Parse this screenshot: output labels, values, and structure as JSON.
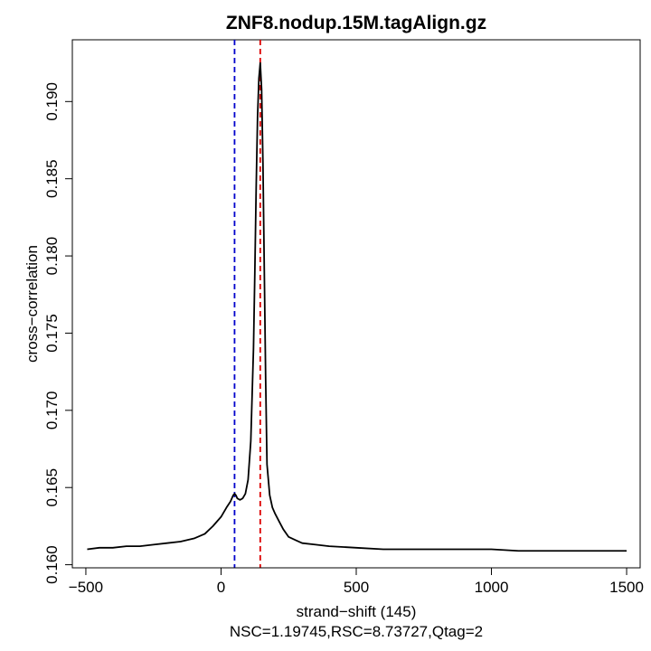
{
  "chart_data": {
    "type": "line",
    "title": "ZNF8.nodup.15M.tagAlign.gz",
    "xlabel": "strand−shift (145)",
    "ylabel": "cross−correlation",
    "subtitle": "NSC=1.19745,RSC=8.73727,Qtag=2",
    "xlim": [
      -550,
      1550
    ],
    "ylim": [
      0.1598,
      0.194
    ],
    "x_ticks": [
      -500,
      0,
      500,
      1000,
      1500
    ],
    "x_tick_labels": [
      "−500",
      "0",
      "500",
      "1000",
      "1500"
    ],
    "y_ticks": [
      0.16,
      0.165,
      0.17,
      0.175,
      0.18,
      0.185,
      0.19
    ],
    "y_tick_labels": [
      "0.160",
      "0.165",
      "0.170",
      "0.175",
      "0.180",
      "0.185",
      "0.190"
    ],
    "grid": false,
    "series": [
      {
        "color": "#000000",
        "x": [
          -495,
          -450,
          -400,
          -350,
          -300,
          -250,
          -200,
          -150,
          -100,
          -60,
          -30,
          0,
          20,
          35,
          45,
          50,
          55,
          60,
          70,
          80,
          90,
          100,
          110,
          120,
          125,
          130,
          135,
          140,
          145,
          150,
          155,
          160,
          165,
          170,
          180,
          190,
          200,
          215,
          230,
          250,
          275,
          300,
          350,
          400,
          500,
          600,
          700,
          800,
          900,
          1000,
          1100,
          1200,
          1300,
          1400,
          1500
        ],
        "y": [
          0.161,
          0.1611,
          0.1611,
          0.1612,
          0.1612,
          0.1613,
          0.1614,
          0.1615,
          0.1617,
          0.162,
          0.1625,
          0.1631,
          0.1637,
          0.1641,
          0.1645,
          0.1646,
          0.1645,
          0.1643,
          0.1642,
          0.1643,
          0.1646,
          0.1655,
          0.168,
          0.174,
          0.179,
          0.1845,
          0.189,
          0.1915,
          0.1925,
          0.1908,
          0.186,
          0.179,
          0.172,
          0.1665,
          0.1645,
          0.1637,
          0.1633,
          0.1628,
          0.1623,
          0.1618,
          0.1616,
          0.1614,
          0.1613,
          0.1612,
          0.1611,
          0.161,
          0.161,
          0.161,
          0.161,
          0.161,
          0.1609,
          0.1609,
          0.1609,
          0.1609,
          0.1609
        ]
      }
    ],
    "vlines": [
      {
        "x": 50,
        "color": "#0000cc",
        "style": "dashed"
      },
      {
        "x": 145,
        "color": "#dd0000",
        "style": "dashed"
      }
    ]
  }
}
